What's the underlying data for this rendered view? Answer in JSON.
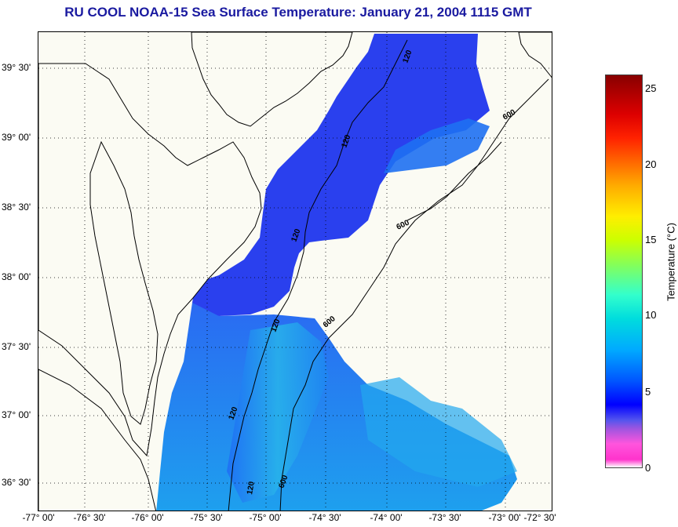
{
  "title": "RU COOL  NOAA-15  Sea Surface Temperature:  January 21, 2004 1115 GMT",
  "y_axis": {
    "labels": [
      "39° 30'",
      "39° 00'",
      "38° 30'",
      "38° 00'",
      "37° 30'",
      "37° 00'",
      "36° 30'"
    ]
  },
  "x_axis": {
    "labels": [
      "-77° 00'",
      "-76° 30'",
      "-76° 00'",
      "-75° 30'",
      "-75° 00'",
      "-74° 30'",
      "-74° 00'",
      "-73° 30'",
      "-73° 00'",
      "-72° 30'"
    ]
  },
  "colorbar": {
    "label": "Temperature (°C)",
    "ticks": [
      "25",
      "20",
      "15",
      "10",
      "5",
      "0"
    ],
    "range": [
      0,
      26
    ]
  },
  "contour_labels": {
    "c120_a": "120",
    "c120_b": "120",
    "c120_c": "120",
    "c120_d": "120",
    "c120_e": "120",
    "c120_f": "120",
    "c600_a": "600",
    "c600_b": "600",
    "c600_c": "600",
    "c600_d": "600"
  },
  "colors": {
    "title": "#1a1aa0",
    "water_deep_cold": "#2a3cf0",
    "water_mid": "#1e78f5",
    "water_warm": "#22c0e6",
    "background": "#fbfbf3"
  }
}
